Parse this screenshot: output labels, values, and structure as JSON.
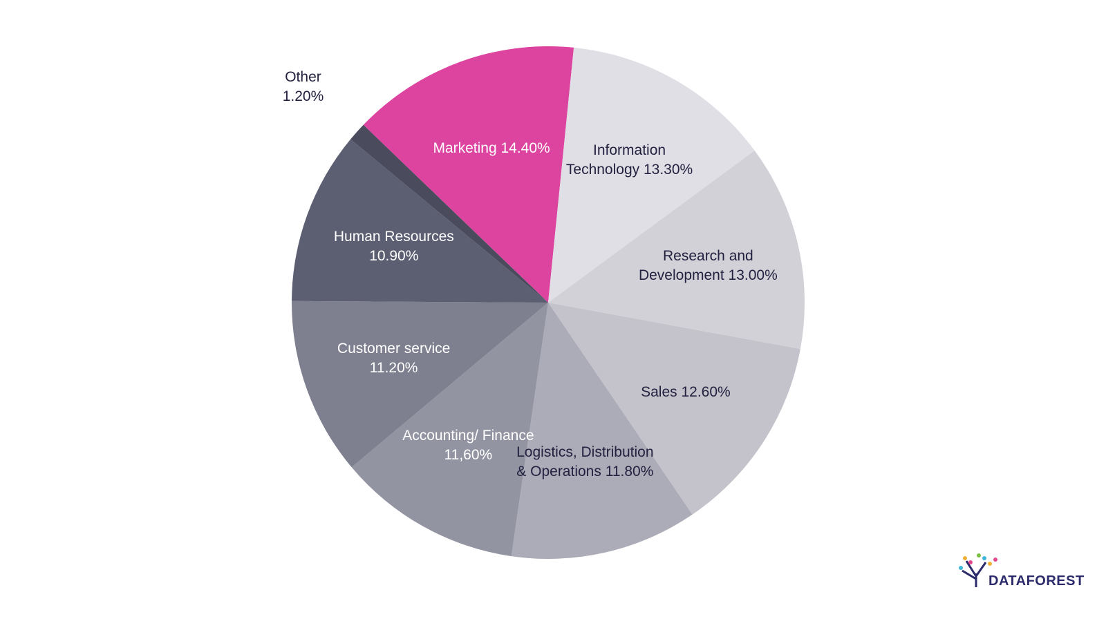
{
  "chart_data": {
    "type": "pie",
    "categories": [
      "Marketing",
      "Information Technology",
      "Research and Development",
      "Sales",
      "Logistics, Distribution & Operations",
      "Accounting/ Finance",
      "Customer service",
      "Human Resources",
      "Other"
    ],
    "values": [
      14.4,
      13.3,
      13.0,
      12.6,
      11.8,
      11.6,
      11.2,
      10.9,
      1.2
    ],
    "value_labels": [
      "14.40%",
      "13.30%",
      "13.00%",
      "12.60%",
      "11.80%",
      "11,60%",
      "11.20%",
      "10.90%",
      "1.20%"
    ],
    "colors": [
      "#dc44a0",
      "#e0dfe5",
      "#d2d1d8",
      "#c4c3cc",
      "#acabb8",
      "#9394a2",
      "#7e7f8f",
      "#5c5e72",
      "#4a4b5d"
    ]
  },
  "logo": "DATAFOREST"
}
